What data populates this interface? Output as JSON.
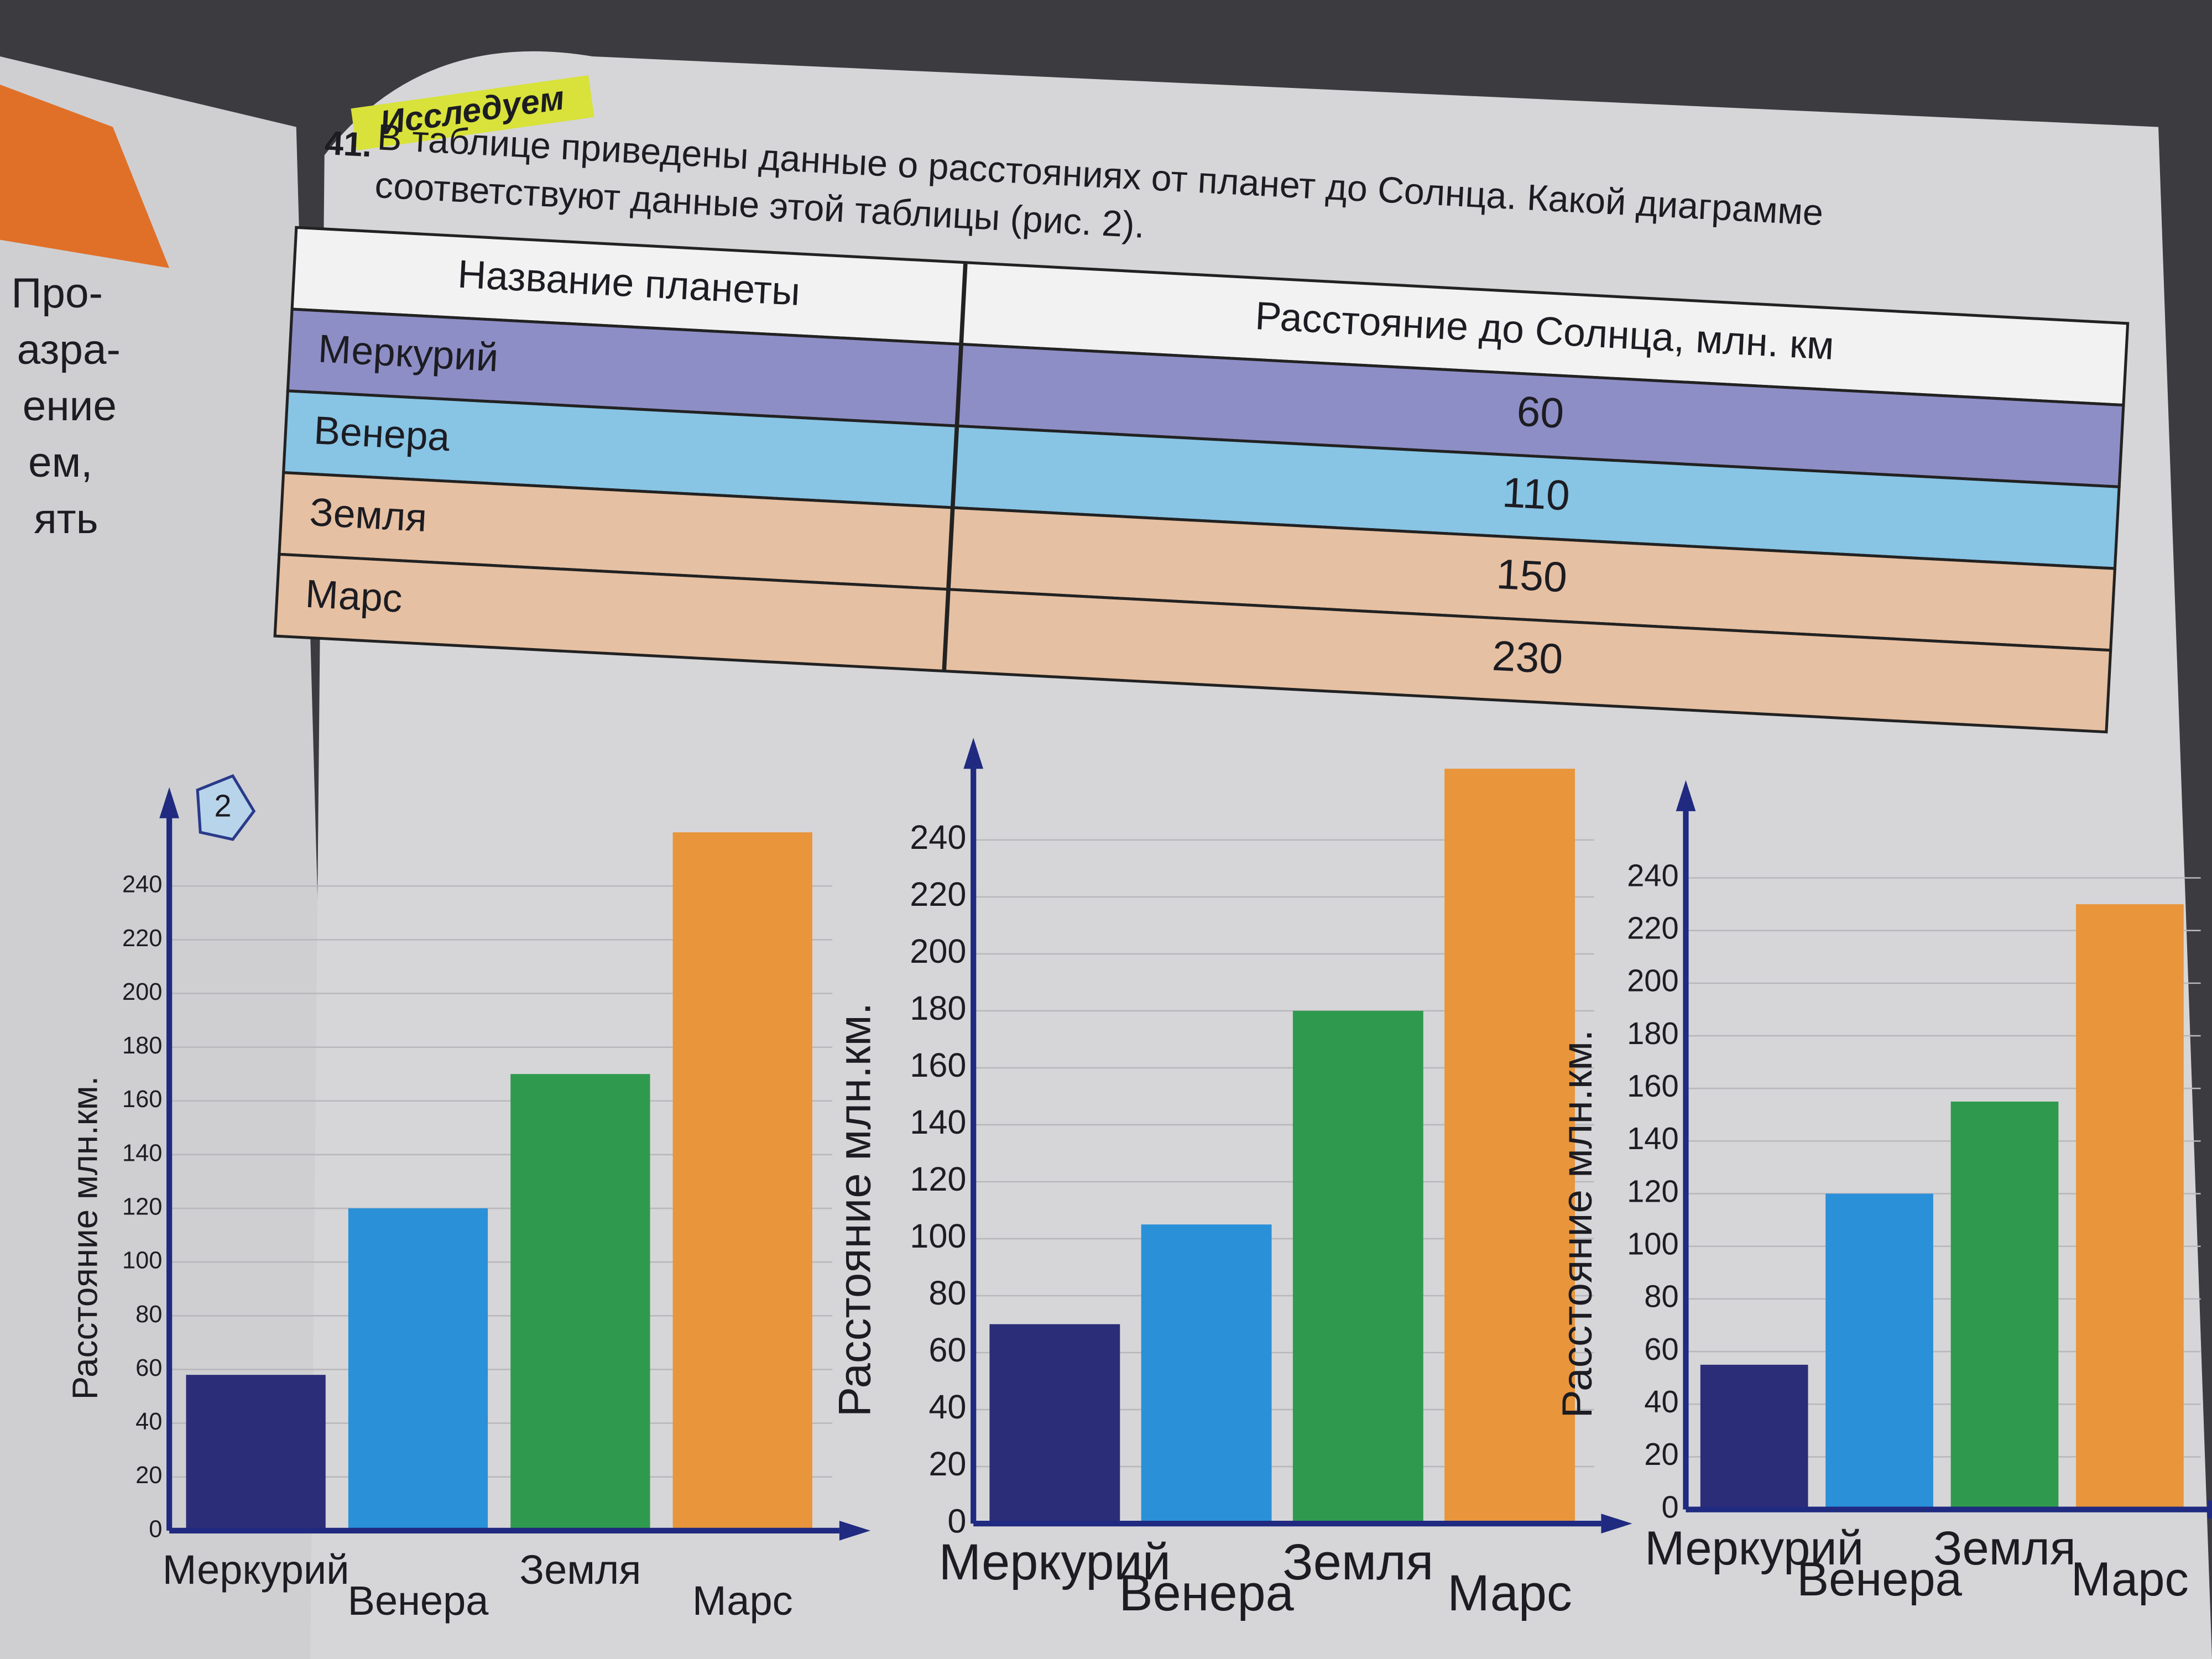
{
  "left_page": {
    "lines": [
      "Про-",
      "азра-",
      "ение",
      "ем,",
      "ять"
    ]
  },
  "header": {
    "title": "Исследуем"
  },
  "question": {
    "number": "41.",
    "text": "В таблице приведены данные о расстояниях от планет до Солнца. Какой диаграмме соответствуют данные этой таблицы (рис. 2)."
  },
  "table": {
    "columns": [
      "Название планеты",
      "Расстояние до Солнца, млн. км"
    ],
    "rows": [
      [
        "Меркурий",
        "60"
      ],
      [
        "Венера",
        "110"
      ],
      [
        "Земля",
        "150"
      ],
      [
        "Марс",
        "230"
      ]
    ]
  },
  "figure": {
    "number": "2"
  },
  "chart_data": [
    {
      "type": "bar",
      "y_label": "Расстояние млн.км.",
      "categories": [
        "Меркурий",
        "Венера",
        "Земля",
        "Марс"
      ],
      "values": [
        58,
        120,
        170,
        260
      ],
      "colors": [
        "#2b2d78",
        "#2a90d8",
        "#2f9a4e",
        "#e8953c"
      ],
      "ylim": [
        0,
        260
      ],
      "yticks": [
        0,
        20,
        40,
        60,
        80,
        100,
        120,
        140,
        160,
        180,
        200,
        220,
        240
      ],
      "grid": true
    },
    {
      "type": "bar",
      "y_label": "Расстояние млн.км.",
      "categories": [
        "Меркурий",
        "Венера",
        "Земля",
        "Марс"
      ],
      "values": [
        70,
        105,
        180,
        265
      ],
      "colors": [
        "#2b2d78",
        "#2a90d8",
        "#2f9a4e",
        "#e8953c"
      ],
      "ylim": [
        0,
        260
      ],
      "yticks": [
        0,
        20,
        40,
        60,
        80,
        100,
        120,
        140,
        160,
        180,
        200,
        220,
        240
      ],
      "grid": true
    },
    {
      "type": "bar",
      "y_label": "Расстояние млн.км.",
      "categories": [
        "Меркурий",
        "Венера",
        "Земля",
        "Марс"
      ],
      "values": [
        55,
        120,
        155,
        230
      ],
      "colors": [
        "#2b2d78",
        "#2a90d8",
        "#2f9a4e",
        "#e8953c"
      ],
      "ylim": [
        0,
        260
      ],
      "yticks": [
        0,
        20,
        40,
        60,
        80,
        100,
        120,
        140,
        160,
        180,
        200,
        220,
        240
      ],
      "grid": true
    }
  ]
}
